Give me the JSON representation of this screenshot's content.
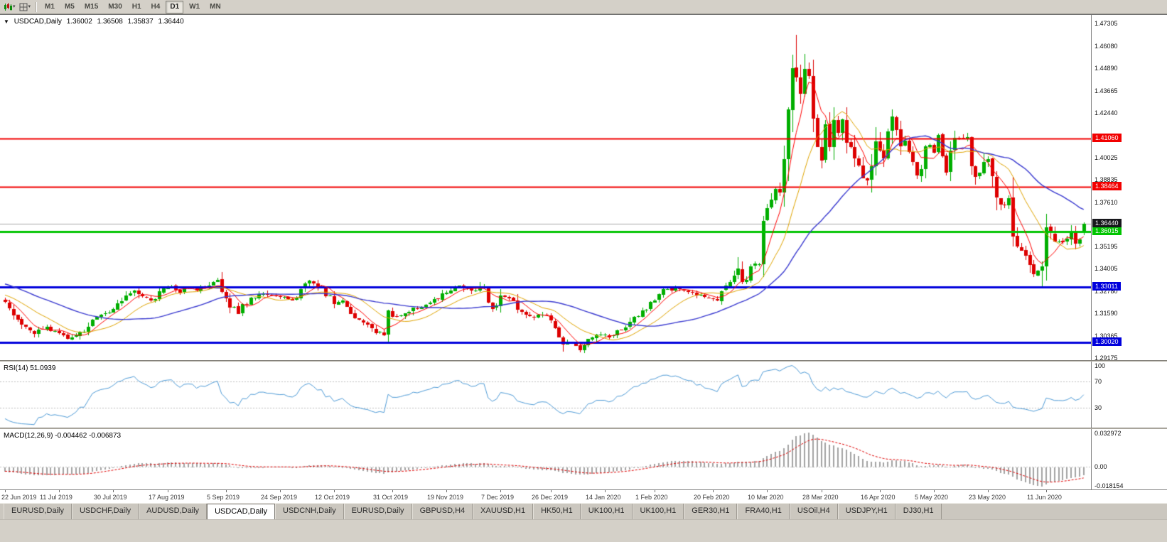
{
  "toolbar": {
    "icon_buttons": [
      {
        "icon": "candlestick-chart-icon",
        "caret": "▾"
      },
      {
        "icon": "chart-grid-icon",
        "caret": "▾"
      }
    ],
    "timeframes": [
      {
        "label": "M1",
        "active": false
      },
      {
        "label": "M5",
        "active": false
      },
      {
        "label": "M15",
        "active": false
      },
      {
        "label": "M30",
        "active": false
      },
      {
        "label": "H1",
        "active": false
      },
      {
        "label": "H4",
        "active": false
      },
      {
        "label": "D1",
        "active": true
      },
      {
        "label": "W1",
        "active": false
      },
      {
        "label": "MN",
        "active": false
      }
    ]
  },
  "chart": {
    "title": {
      "arrow": "▼",
      "symbol": "USDCAD,Daily",
      "open": "1.36002",
      "high": "1.36508",
      "low": "1.35837",
      "close": "1.36440"
    },
    "price_axis": {
      "ticks": [
        "1.47305",
        "1.46080",
        "1.44890",
        "1.43665",
        "1.42440",
        "1.40025",
        "1.38835",
        "1.37610",
        "1.35195",
        "1.34005",
        "1.32780",
        "1.31590",
        "1.30365",
        "1.29175"
      ]
    },
    "levels": [
      {
        "value": 1.4106,
        "label": "1.41060",
        "color": "#F20000",
        "width": 2
      },
      {
        "value": 1.38464,
        "label": "1.38464",
        "color": "#F20000",
        "width": 2
      },
      {
        "value": 1.36015,
        "label": "1.36015",
        "color": "#00C400",
        "width": 3
      },
      {
        "value": 1.33011,
        "label": "1.33011",
        "color": "#0000DC",
        "width": 3
      },
      {
        "value": 1.3002,
        "label": "1.30020",
        "color": "#0000DC",
        "width": 3
      }
    ],
    "current_price": {
      "value": 1.3644,
      "label": "1.36440",
      "line_color": "#ABABAB",
      "badge_bg": "#17171C"
    },
    "x_axis": {
      "labels": [
        {
          "text": "22 Jun 2019",
          "bar": 0
        },
        {
          "text": "11 Jul 2019",
          "bar": 13
        },
        {
          "text": "30 Jul 2019",
          "bar": 26
        },
        {
          "text": "17 Aug 2019",
          "bar": 39
        },
        {
          "text": "5 Sep 2019",
          "bar": 53
        },
        {
          "text": "24 Sep 2019",
          "bar": 66
        },
        {
          "text": "12 Oct 2019",
          "bar": 79
        },
        {
          "text": "31 Oct 2019",
          "bar": 93
        },
        {
          "text": "19 Nov 2019",
          "bar": 106
        },
        {
          "text": "7 Dec 2019",
          "bar": 119
        },
        {
          "text": "26 Dec 2019",
          "bar": 131
        },
        {
          "text": "14 Jan 2020",
          "bar": 144
        },
        {
          "text": "1 Feb 2020",
          "bar": 156
        },
        {
          "text": "20 Feb 2020",
          "bar": 170
        },
        {
          "text": "10 Mar 2020",
          "bar": 183
        },
        {
          "text": "28 Mar 2020",
          "bar": 196
        },
        {
          "text": "16 Apr 2020",
          "bar": 210
        },
        {
          "text": "5 May 2020",
          "bar": 223
        },
        {
          "text": "23 May 2020",
          "bar": 236
        },
        {
          "text": "11 Jun 2020",
          "bar": 250
        }
      ]
    }
  },
  "indicators": {
    "rsi": {
      "label": "RSI(14) 51.0939",
      "value": "51.0939",
      "line_color": "#4E9BD7",
      "axis": [
        {
          "label": "100",
          "value": 100,
          "line": false
        },
        {
          "label": "70",
          "value": 70,
          "line": true
        },
        {
          "label": "30",
          "value": 30,
          "line": true
        }
      ]
    },
    "macd": {
      "label": "MACD(12,26,9) -0.004462 -0.006873",
      "values": [
        "-0.004462",
        "-0.006873"
      ],
      "histogram_color": "#A3A3A3",
      "signal_color": "#E00000",
      "axis": [
        {
          "label": "0.032972",
          "value": 0.032972
        },
        {
          "label": "0.00",
          "value": 0
        },
        {
          "label": "-0.018154",
          "value": -0.018154
        }
      ],
      "range": [
        -0.018154,
        0.032972
      ]
    }
  },
  "tabs": [
    {
      "label": "EURUSD,Daily",
      "active": false
    },
    {
      "label": "USDCHF,Daily",
      "active": false
    },
    {
      "label": "AUDUSD,Daily",
      "active": false
    },
    {
      "label": "USDCAD,Daily",
      "active": true
    },
    {
      "label": "USDCNH,Daily",
      "active": false
    },
    {
      "label": "EURUSD,Daily",
      "active": false
    },
    {
      "label": "GBPUSD,H4",
      "active": false
    },
    {
      "label": "XAUUSD,H1",
      "active": false
    },
    {
      "label": "HK50,H1",
      "active": false
    },
    {
      "label": "UK100,H1",
      "active": false
    },
    {
      "label": "UK100,H1",
      "active": false
    },
    {
      "label": "GER30,H1",
      "active": false
    },
    {
      "label": "FRA40,H1",
      "active": false
    },
    {
      "label": "USOil,H4",
      "active": false
    },
    {
      "label": "USDJPY,H1",
      "active": false
    },
    {
      "label": "DJ30,H1",
      "active": false
    }
  ],
  "chart_data": {
    "type": "candlestick",
    "symbol": "USDCAD",
    "timeframe": "Daily",
    "bars": 260,
    "seed": 11,
    "current_ohlc": {
      "open": 1.36002,
      "high": 1.36508,
      "low": 1.35837,
      "close": 1.3644
    },
    "price_range": [
      1.2905,
      1.4777
    ],
    "up_color": "#00AE00",
    "down_color": "#DD0000",
    "anchors": [
      [
        0,
        1.322
      ],
      [
        2,
        1.315
      ],
      [
        4,
        1.3095
      ],
      [
        7,
        1.3048
      ],
      [
        10,
        1.3085
      ],
      [
        13,
        1.3052
      ],
      [
        15,
        1.3022
      ],
      [
        19,
        1.3058
      ],
      [
        21,
        1.3125
      ],
      [
        24,
        1.3158
      ],
      [
        27,
        1.3215
      ],
      [
        29,
        1.3255
      ],
      [
        31,
        1.3282
      ],
      [
        33,
        1.3252
      ],
      [
        35,
        1.323
      ],
      [
        38,
        1.3295
      ],
      [
        40,
        1.3305
      ],
      [
        42,
        1.327
      ],
      [
        44,
        1.33
      ],
      [
        46,
        1.328
      ],
      [
        49,
        1.331
      ],
      [
        51,
        1.334
      ],
      [
        53,
        1.324
      ],
      [
        56,
        1.3155
      ],
      [
        59,
        1.3245
      ],
      [
        62,
        1.3265
      ],
      [
        65,
        1.325
      ],
      [
        68,
        1.3235
      ],
      [
        70,
        1.3245
      ],
      [
        73,
        1.3335
      ],
      [
        76,
        1.33
      ],
      [
        79,
        1.321
      ],
      [
        81,
        1.323
      ],
      [
        83,
        1.3155
      ],
      [
        85,
        1.3125
      ],
      [
        88,
        1.3075
      ],
      [
        91,
        1.3042
      ],
      [
        92,
        1.3175
      ],
      [
        94,
        1.314
      ],
      [
        97,
        1.3165
      ],
      [
        100,
        1.3195
      ],
      [
        103,
        1.3235
      ],
      [
        106,
        1.327
      ],
      [
        109,
        1.331
      ],
      [
        112,
        1.328
      ],
      [
        115,
        1.3305
      ],
      [
        117,
        1.3185
      ],
      [
        119,
        1.3255
      ],
      [
        122,
        1.323
      ],
      [
        124,
        1.3165
      ],
      [
        127,
        1.3135
      ],
      [
        130,
        1.315
      ],
      [
        132,
        1.308
      ],
      [
        134,
        1.299
      ],
      [
        136,
        1.2998
      ],
      [
        138,
        1.296
      ],
      [
        140,
        1.302
      ],
      [
        142,
        1.3045
      ],
      [
        144,
        1.3045
      ],
      [
        146,
        1.3038
      ],
      [
        148,
        1.3068
      ],
      [
        151,
        1.314
      ],
      [
        153,
        1.3175
      ],
      [
        156,
        1.323
      ],
      [
        158,
        1.329
      ],
      [
        161,
        1.3295
      ],
      [
        163,
        1.328
      ],
      [
        166,
        1.3255
      ],
      [
        168,
        1.3245
      ],
      [
        171,
        1.3228
      ],
      [
        172,
        1.328
      ],
      [
        174,
        1.333
      ],
      [
        176,
        1.34
      ],
      [
        177,
        1.333
      ],
      [
        179,
        1.3415
      ],
      [
        181,
        1.3425
      ],
      [
        182,
        1.366
      ],
      [
        184,
        1.3775
      ],
      [
        186,
        1.3815
      ],
      [
        187,
        1.3995
      ],
      [
        188,
        1.4265
      ],
      [
        189,
        1.449
      ],
      [
        190,
        1.444
      ],
      [
        191,
        1.435
      ],
      [
        192,
        1.4485
      ],
      [
        193,
        1.4445
      ],
      [
        194,
        1.4215
      ],
      [
        195,
        1.406
      ],
      [
        196,
        1.399
      ],
      [
        197,
        1.4185
      ],
      [
        198,
        1.406
      ],
      [
        199,
        1.4205
      ],
      [
        200,
        1.414
      ],
      [
        201,
        1.421
      ],
      [
        202,
        1.4085
      ],
      [
        204,
        1.4
      ],
      [
        205,
        1.396
      ],
      [
        207,
        1.388
      ],
      [
        209,
        1.409
      ],
      [
        210,
        1.404
      ],
      [
        211,
        1.4
      ],
      [
        212,
        1.4145
      ],
      [
        213,
        1.4225
      ],
      [
        214,
        1.4155
      ],
      [
        215,
        1.4065
      ],
      [
        216,
        1.4095
      ],
      [
        217,
        1.4035
      ],
      [
        219,
        1.3905
      ],
      [
        220,
        1.394
      ],
      [
        221,
        1.4065
      ],
      [
        223,
        1.403
      ],
      [
        224,
        1.4125
      ],
      [
        226,
        1.392
      ],
      [
        227,
        1.404
      ],
      [
        229,
        1.411
      ],
      [
        231,
        1.4115
      ],
      [
        232,
        1.3955
      ],
      [
        233,
        1.39
      ],
      [
        234,
        1.392
      ],
      [
        236,
        1.3995
      ],
      [
        238,
        1.3785
      ],
      [
        239,
        1.375
      ],
      [
        241,
        1.3785
      ],
      [
        242,
        1.3575
      ],
      [
        244,
        1.35
      ],
      [
        246,
        1.342
      ],
      [
        247,
        1.337
      ],
      [
        249,
        1.3415
      ],
      [
        250,
        1.3625
      ],
      [
        251,
        1.3595
      ],
      [
        252,
        1.355
      ],
      [
        254,
        1.3545
      ],
      [
        256,
        1.3605
      ],
      [
        257,
        1.3535
      ],
      [
        258,
        1.356
      ],
      [
        259,
        1.3644
      ]
    ],
    "overrides": {
      "high": {
        "176": 1.3465,
        "182": 1.3685,
        "189": 1.456,
        "190": 1.4668,
        "213": 1.4265
      },
      "low": {
        "15": 1.3016,
        "91": 1.3036,
        "134": 1.2952,
        "138": 1.2949,
        "247": 1.3355,
        "249": 1.3302
      },
      "last_ohlc": [
        1.36002,
        1.36508,
        1.35837,
        1.3644
      ]
    },
    "moving_averages": [
      {
        "name": "ma-fast",
        "period": 6,
        "color": "#FF0000",
        "width": 1
      },
      {
        "name": "ma-mid",
        "period": 14,
        "color": "#E0A400",
        "width": 1
      },
      {
        "name": "ma-slow",
        "period": 34,
        "color": "#3A3AD0",
        "width": 1.4
      }
    ]
  }
}
